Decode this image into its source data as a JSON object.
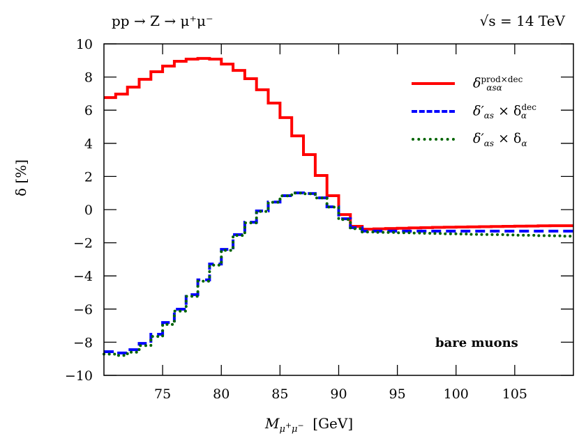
{
  "chart_data": {
    "type": "line",
    "style": "step",
    "title_left": "pp → Z → μ⁺μ⁻",
    "title_right": "√s = 14 TeV",
    "xlabel": "M_{μ⁺μ⁻} [GeV]",
    "ylabel": "δ [%]",
    "xlim": [
      70,
      110
    ],
    "ylim": [
      -10,
      10
    ],
    "xticks": [
      75,
      80,
      85,
      90,
      95,
      100,
      105
    ],
    "yticks": [
      -10,
      -8,
      -6,
      -4,
      -2,
      0,
      2,
      4,
      6,
      8,
      10
    ],
    "grid": false,
    "legend_position": "upper right",
    "annotation": "bare muons",
    "bin_edges": [
      70,
      71,
      72,
      73,
      74,
      75,
      76,
      77,
      78,
      79,
      80,
      81,
      82,
      83,
      84,
      85,
      86,
      87,
      88,
      89,
      90,
      91,
      92,
      93,
      94,
      95,
      96,
      97,
      98,
      99,
      100,
      101,
      102,
      103,
      104,
      105,
      106,
      107,
      108,
      109,
      110
    ],
    "series": [
      {
        "name": "δ^{prod×dec}_{αsα}",
        "color": "#ff0000",
        "style": "solid",
        "values": [
          6.76,
          6.97,
          7.39,
          7.86,
          8.32,
          8.66,
          8.95,
          9.08,
          9.12,
          9.08,
          8.78,
          8.4,
          7.9,
          7.23,
          6.43,
          5.55,
          4.45,
          3.32,
          2.06,
          0.84,
          -0.3,
          -1.01,
          -1.18,
          -1.16,
          -1.14,
          -1.12,
          -1.1,
          -1.09,
          -1.07,
          -1.06,
          -1.05,
          -1.04,
          -1.03,
          -1.02,
          -1.01,
          -1.0,
          -0.99,
          -0.98,
          -0.97,
          -0.97
        ]
      },
      {
        "name": "δ'_{αs} × δ^{dec}_α",
        "color": "#0000ff",
        "style": "dashed",
        "values": [
          -8.57,
          -8.65,
          -8.45,
          -8.07,
          -7.52,
          -6.81,
          -6.01,
          -5.13,
          -4.24,
          -3.28,
          -2.4,
          -1.51,
          -0.76,
          -0.08,
          0.46,
          0.84,
          1.01,
          0.97,
          0.71,
          0.17,
          -0.55,
          -1.09,
          -1.3,
          -1.3,
          -1.3,
          -1.3,
          -1.3,
          -1.3,
          -1.3,
          -1.3,
          -1.3,
          -1.3,
          -1.3,
          -1.3,
          -1.3,
          -1.3,
          -1.3,
          -1.3,
          -1.3,
          -1.3
        ]
      },
      {
        "name": "δ'_{αs} × δ_α",
        "color": "#006400",
        "style": "dotted",
        "values": [
          -8.72,
          -8.8,
          -8.6,
          -8.2,
          -7.65,
          -6.93,
          -6.12,
          -5.23,
          -4.32,
          -3.35,
          -2.46,
          -1.56,
          -0.8,
          -0.11,
          0.44,
          0.83,
          1.0,
          0.96,
          0.7,
          0.15,
          -0.6,
          -1.15,
          -1.35,
          -1.37,
          -1.38,
          -1.4,
          -1.41,
          -1.43,
          -1.44,
          -1.46,
          -1.47,
          -1.49,
          -1.5,
          -1.51,
          -1.53,
          -1.54,
          -1.55,
          -1.57,
          -1.58,
          -1.6
        ]
      }
    ]
  },
  "legend": {
    "items": [
      {
        "main": "δ",
        "sup": "prod×dec",
        "sub": "αsα"
      },
      {
        "main": "δ′",
        "sub": "αs",
        "times": " × δ",
        "sup2": "dec",
        "sub2": "α"
      },
      {
        "main": "δ′",
        "sub": "αs",
        "times": " × δ",
        "sub2": "α"
      }
    ]
  }
}
